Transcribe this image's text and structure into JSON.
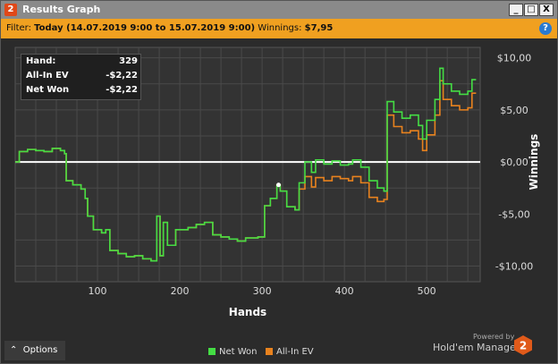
{
  "window": {
    "title": "Results Graph",
    "app_badge": "2",
    "minimize": "_",
    "maximize": "□",
    "close": "X"
  },
  "filter_bar": {
    "filter_label": "Filter:",
    "filter_value": "Today (14.07.2019 9:00 to 15.07.2019 9:00)",
    "winnings_label": "Winnings:",
    "winnings_value": "$7,95",
    "help": "?"
  },
  "tooltip": {
    "rows": [
      {
        "label": "Hand:",
        "value": "329"
      },
      {
        "label": "All-In EV",
        "value": "-$2,22"
      },
      {
        "label": "Net Won",
        "value": "-$2,22"
      }
    ]
  },
  "bottom": {
    "options_label": "Options",
    "powered_by": "Powered by",
    "brand": "Hold'em Manager",
    "brand_badge": "2"
  },
  "colors": {
    "net_won": "#44dd44",
    "all_in_ev": "#e8821e",
    "zero_line": "#ffffff",
    "filter_bg": "#f0a020"
  },
  "chart_data": {
    "type": "line",
    "xlabel": "Hands",
    "ylabel": "Winnings",
    "xlim": [
      0,
      565
    ],
    "ylim": [
      -11.5,
      11.0
    ],
    "x_ticks": [
      100,
      200,
      300,
      400,
      500
    ],
    "x_tick_labels": [
      "100",
      "200",
      "300",
      "400",
      "500"
    ],
    "y_ticks": [
      10,
      5,
      0,
      -5,
      -10
    ],
    "y_tick_labels": [
      "$10,00",
      "$5,00",
      "$0,00",
      "-$5,00",
      "-$10,00"
    ],
    "grid": true,
    "legend": "bottom-center",
    "series": [
      {
        "name": "Net Won",
        "color": "#44dd44",
        "points": [
          [
            0,
            0.0
          ],
          [
            5,
            1.0
          ],
          [
            15,
            1.2
          ],
          [
            25,
            1.1
          ],
          [
            35,
            1.0
          ],
          [
            45,
            1.3
          ],
          [
            55,
            1.1
          ],
          [
            60,
            0.8
          ],
          [
            62,
            -1.8
          ],
          [
            70,
            -2.2
          ],
          [
            80,
            -2.6
          ],
          [
            85,
            -3.5
          ],
          [
            88,
            -5.2
          ],
          [
            95,
            -6.5
          ],
          [
            105,
            -6.8
          ],
          [
            110,
            -6.5
          ],
          [
            115,
            -8.5
          ],
          [
            125,
            -8.8
          ],
          [
            135,
            -9.1
          ],
          [
            145,
            -9.0
          ],
          [
            155,
            -9.3
          ],
          [
            165,
            -9.5
          ],
          [
            172,
            -5.2
          ],
          [
            176,
            -9.0
          ],
          [
            180,
            -5.8
          ],
          [
            185,
            -8.0
          ],
          [
            195,
            -6.5
          ],
          [
            210,
            -6.3
          ],
          [
            220,
            -6.0
          ],
          [
            230,
            -5.8
          ],
          [
            240,
            -7.0
          ],
          [
            250,
            -7.2
          ],
          [
            260,
            -7.4
          ],
          [
            270,
            -7.6
          ],
          [
            280,
            -7.3
          ],
          [
            295,
            -7.2
          ],
          [
            303,
            -4.2
          ],
          [
            310,
            -3.5
          ],
          [
            318,
            -2.2
          ],
          [
            322,
            -2.8
          ],
          [
            330,
            -4.3
          ],
          [
            340,
            -4.6
          ],
          [
            345,
            -2.0
          ],
          [
            352,
            0.0
          ],
          [
            360,
            -1.0
          ],
          [
            365,
            0.2
          ],
          [
            375,
            -0.2
          ],
          [
            385,
            0.1
          ],
          [
            395,
            -0.3
          ],
          [
            405,
            -0.2
          ],
          [
            410,
            0.2
          ],
          [
            420,
            -0.5
          ],
          [
            430,
            -1.8
          ],
          [
            440,
            -2.5
          ],
          [
            448,
            -2.8
          ],
          [
            452,
            5.8
          ],
          [
            460,
            4.8
          ],
          [
            470,
            4.2
          ],
          [
            480,
            4.5
          ],
          [
            490,
            3.5
          ],
          [
            495,
            2.2
          ],
          [
            500,
            4.0
          ],
          [
            510,
            6.0
          ],
          [
            516,
            9.0
          ],
          [
            520,
            7.5
          ],
          [
            530,
            6.8
          ],
          [
            540,
            6.5
          ],
          [
            550,
            6.8
          ],
          [
            555,
            7.9
          ],
          [
            560,
            7.9
          ]
        ]
      },
      {
        "name": "All-In EV",
        "color": "#e8821e",
        "points": [
          [
            0,
            0.0
          ],
          [
            5,
            1.0
          ],
          [
            15,
            1.2
          ],
          [
            25,
            1.1
          ],
          [
            35,
            1.0
          ],
          [
            45,
            1.3
          ],
          [
            55,
            1.1
          ],
          [
            60,
            0.8
          ],
          [
            62,
            -1.8
          ],
          [
            70,
            -2.2
          ],
          [
            80,
            -2.6
          ],
          [
            85,
            -3.5
          ],
          [
            88,
            -5.2
          ],
          [
            95,
            -6.5
          ],
          [
            105,
            -6.8
          ],
          [
            110,
            -6.5
          ],
          [
            115,
            -8.5
          ],
          [
            125,
            -8.8
          ],
          [
            135,
            -9.1
          ],
          [
            145,
            -9.0
          ],
          [
            155,
            -9.3
          ],
          [
            165,
            -9.5
          ],
          [
            172,
            -5.2
          ],
          [
            176,
            -9.0
          ],
          [
            180,
            -5.8
          ],
          [
            185,
            -8.0
          ],
          [
            195,
            -6.5
          ],
          [
            210,
            -6.3
          ],
          [
            220,
            -6.0
          ],
          [
            230,
            -5.8
          ],
          [
            240,
            -7.0
          ],
          [
            250,
            -7.2
          ],
          [
            260,
            -7.4
          ],
          [
            270,
            -7.6
          ],
          [
            280,
            -7.3
          ],
          [
            295,
            -7.2
          ],
          [
            303,
            -4.2
          ],
          [
            310,
            -3.5
          ],
          [
            318,
            -2.2
          ],
          [
            322,
            -2.8
          ],
          [
            330,
            -4.3
          ],
          [
            340,
            -4.6
          ],
          [
            345,
            -2.6
          ],
          [
            352,
            -1.4
          ],
          [
            360,
            -2.4
          ],
          [
            365,
            -1.5
          ],
          [
            375,
            -1.8
          ],
          [
            385,
            -1.4
          ],
          [
            395,
            -1.6
          ],
          [
            405,
            -1.8
          ],
          [
            410,
            -1.4
          ],
          [
            420,
            -2.0
          ],
          [
            430,
            -3.4
          ],
          [
            440,
            -3.8
          ],
          [
            448,
            -3.6
          ],
          [
            452,
            4.5
          ],
          [
            460,
            3.4
          ],
          [
            470,
            2.8
          ],
          [
            480,
            3.0
          ],
          [
            490,
            2.2
          ],
          [
            495,
            1.1
          ],
          [
            500,
            2.6
          ],
          [
            510,
            4.5
          ],
          [
            516,
            7.8
          ],
          [
            520,
            6.0
          ],
          [
            530,
            5.4
          ],
          [
            540,
            5.0
          ],
          [
            550,
            5.2
          ],
          [
            555,
            6.6
          ],
          [
            560,
            6.6
          ]
        ]
      }
    ],
    "highlight_point": [
      320,
      -2.2
    ]
  }
}
